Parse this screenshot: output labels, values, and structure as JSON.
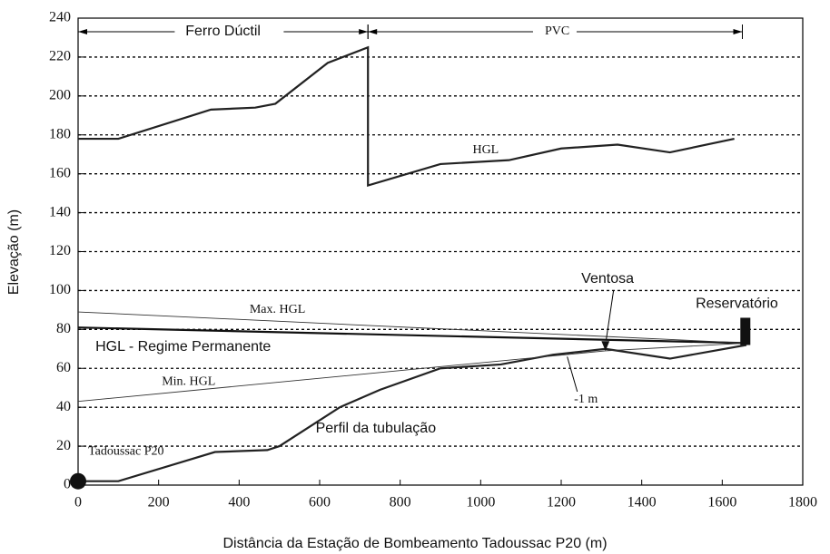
{
  "chart_data": {
    "type": "line",
    "x_label": "Distância da Estação de Bombeamento Tadoussac P20 (m)",
    "y_label": "Elevação (m)",
    "xlim": [
      0,
      1800
    ],
    "xticks": [
      0,
      200,
      400,
      600,
      800,
      1000,
      1200,
      1400,
      1600,
      1800
    ],
    "ylim": [
      0,
      240
    ],
    "yticks": [
      0,
      20,
      40,
      60,
      80,
      100,
      120,
      140,
      160,
      180,
      200,
      220,
      240
    ],
    "grid": true,
    "series": [
      {
        "name": "HGL",
        "color": "#222",
        "x": [
          0,
          100,
          330,
          440,
          490,
          620,
          720,
          720,
          900,
          1070,
          1200,
          1340,
          1470,
          1630
        ],
        "values": [
          178,
          178,
          193,
          194,
          196,
          217,
          225,
          154,
          165,
          167,
          173,
          175,
          171,
          178
        ]
      },
      {
        "name": "Perfil da tubulação",
        "color": "#222",
        "x": [
          0,
          100,
          340,
          470,
          500,
          650,
          750,
          900,
          1050,
          1180,
          1310,
          1470,
          1660
        ],
        "values": [
          2,
          2,
          17,
          18,
          20,
          40,
          49,
          60,
          62,
          67,
          70,
          65,
          72
        ]
      },
      {
        "name": "HGL - Regime Permanente",
        "color": "#111",
        "x": [
          0,
          1660
        ],
        "values": [
          81,
          73
        ]
      },
      {
        "name": "Max. HGL",
        "color": "#333",
        "x": [
          0,
          1660
        ],
        "values": [
          89,
          73
        ]
      },
      {
        "name": "Min. HGL",
        "color": "#333",
        "x": [
          0,
          1310,
          1660
        ],
        "values": [
          43,
          69,
          73
        ]
      }
    ],
    "annotations": [
      "Ferro Dúctil",
      "PVC",
      "Ventosa",
      "Reservatório",
      "-1 m",
      "Tadoussac P20"
    ]
  }
}
